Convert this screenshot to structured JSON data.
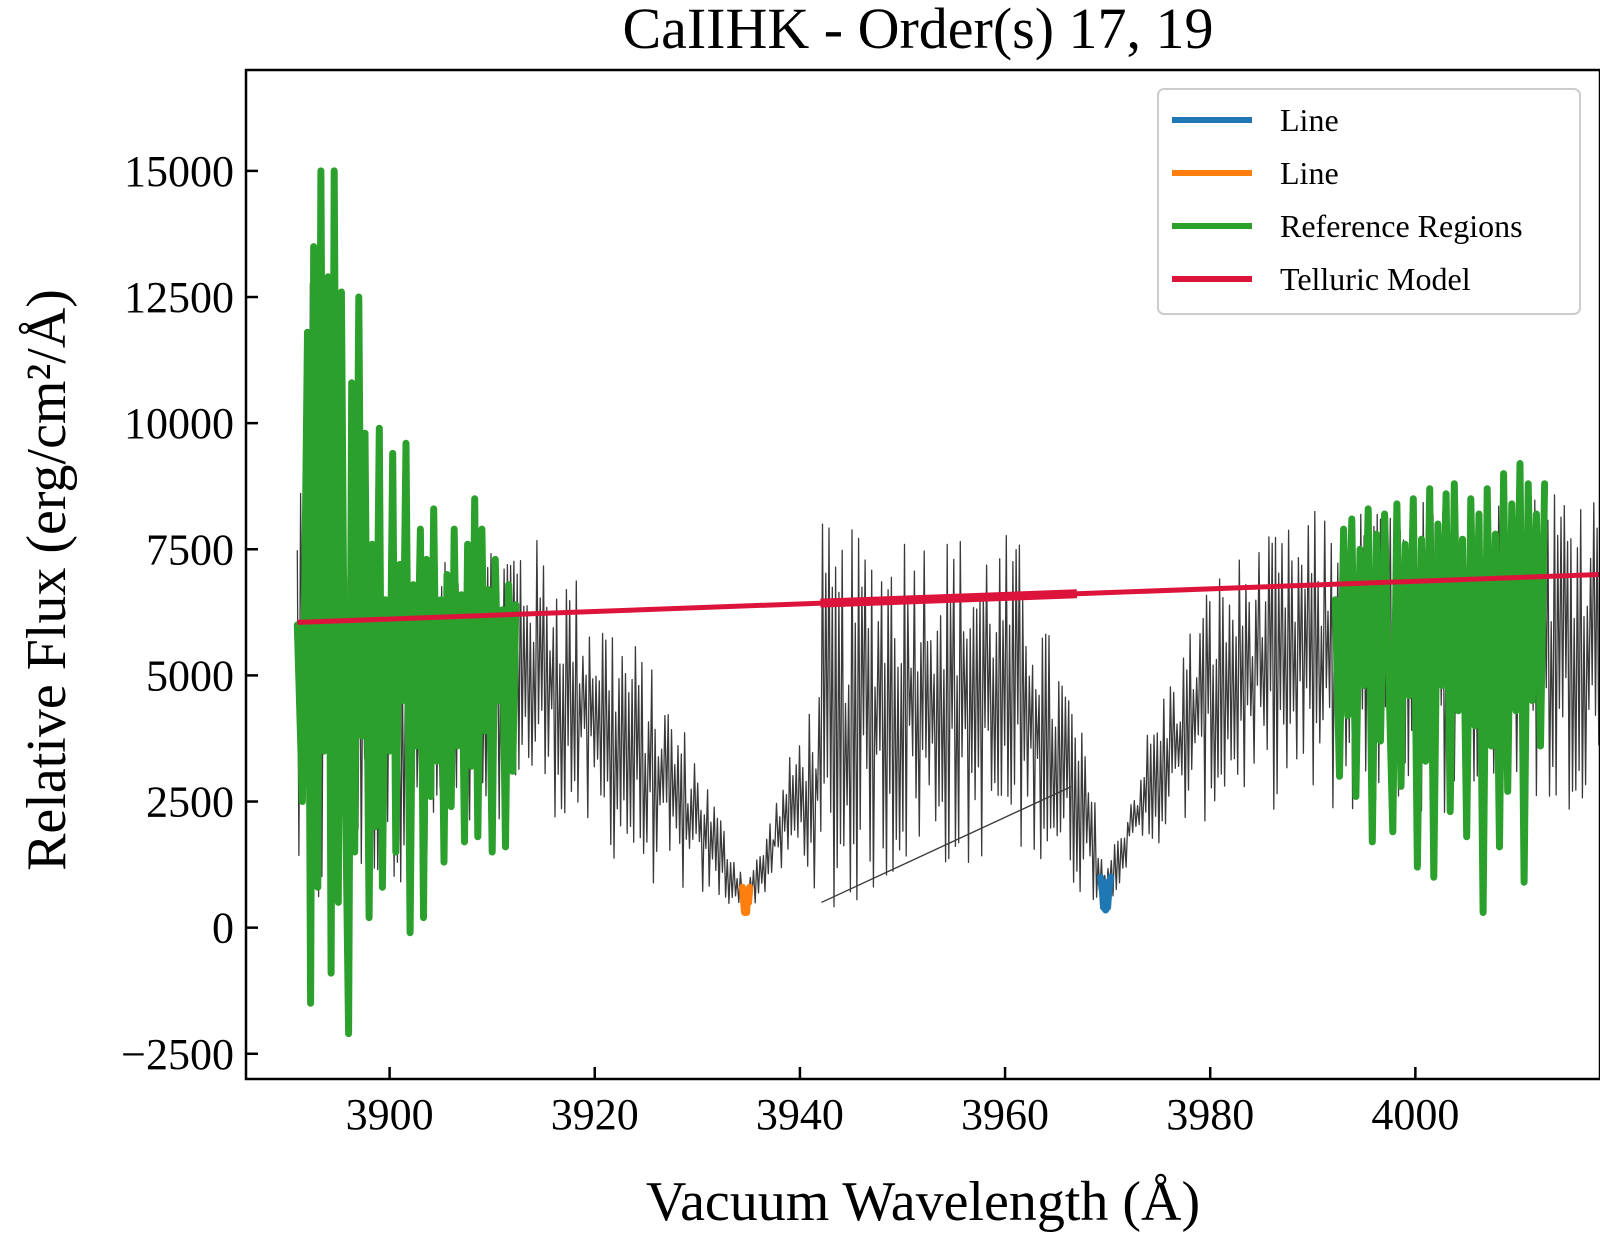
{
  "chart_data": {
    "type": "line",
    "title": "CaIIHK - Order(s) 17, 19",
    "xlabel": "Vacuum Wavelength (Å)",
    "ylabel": "Relative Flux (erg/cm²/Å)",
    "xlim": [
      3886,
      4018
    ],
    "ylim": [
      -3000,
      17000
    ],
    "xticks": [
      3900,
      3920,
      3940,
      3960,
      3980,
      4000
    ],
    "xtick_labels": [
      "3900",
      "3920",
      "3940",
      "3960",
      "3980",
      "4000"
    ],
    "yticks": [
      -2500,
      0,
      2500,
      5000,
      7500,
      10000,
      12500,
      15000
    ],
    "ytick_labels": [
      "−2500",
      "0",
      "2500",
      "5000",
      "7500",
      "10000",
      "12500",
      "15000"
    ],
    "grid": false,
    "legend_position": "top-right",
    "series": [
      {
        "name": "Line",
        "color": "#1f77b4",
        "x": [
          3969.3,
          3969.5,
          3969.6,
          3969.7,
          3969.8,
          3969.9,
          3970.0,
          3970.1,
          3970.3
        ],
        "y": [
          1000,
          700,
          400,
          900,
          350,
          800,
          400,
          700,
          1000
        ]
      },
      {
        "name": "Line",
        "color": "#ff7f0e",
        "x": [
          3934.4,
          3934.5,
          3934.6,
          3934.7,
          3934.8,
          3934.9,
          3935.0,
          3935.1
        ],
        "y": [
          800,
          550,
          300,
          700,
          300,
          650,
          500,
          800
        ]
      },
      {
        "name": "Reference Regions",
        "color": "#2ca02c",
        "regions": [
          {
            "x": [
              3891.0,
              3891.5,
              3892.0,
              3892.3,
              3892.6,
              3893.0,
              3893.3,
              3893.6,
              3894.0,
              3894.3,
              3894.6,
              3895.0,
              3895.3,
              3895.6,
              3896.0,
              3896.3,
              3896.6,
              3897.0,
              3897.3,
              3897.6,
              3898.0,
              3898.3,
              3898.6,
              3899.0,
              3899.3,
              3899.6,
              3900.0,
              3900.3,
              3900.6,
              3901.0,
              3901.3,
              3901.6,
              3902.0,
              3902.3,
              3902.6,
              3903.0,
              3903.3,
              3903.6,
              3904.0,
              3904.3,
              3904.6,
              3905.0,
              3905.3,
              3905.6,
              3906.0,
              3906.3,
              3906.6,
              3907.0,
              3907.3,
              3907.6,
              3908.0,
              3908.3,
              3908.6,
              3909.0,
              3909.3,
              3909.6,
              3910.0,
              3910.3,
              3910.6,
              3911.0,
              3911.3,
              3911.6,
              3912.0,
              3912.3
            ],
            "y": [
              6000,
              2500,
              11800,
              -1500,
              13500,
              800,
              15000,
              3500,
              12900,
              -900,
              15000,
              500,
              12600,
              4200,
              -2100,
              10800,
              1500,
              12500,
              3800,
              9800,
              200,
              7600,
              2000,
              9900,
              800,
              6500,
              3500,
              9400,
              1500,
              7200,
              4500,
              9600,
              -100,
              6800,
              3600,
              7900,
              200,
              7300,
              2600,
              8300,
              3300,
              6500,
              1300,
              7000,
              2400,
              7900,
              3600,
              6600,
              1700,
              7600,
              3200,
              8500,
              1800,
              7900,
              3900,
              6700,
              1500,
              7300,
              4500,
              6300,
              1600,
              6800,
              3100,
              6400
            ]
          },
          {
            "x": [
              3992.2,
              3992.6,
              3993.0,
              3993.4,
              3993.8,
              3994.2,
              3994.6,
              3995.0,
              3995.4,
              3995.8,
              3996.2,
              3996.6,
              3997.0,
              3997.4,
              3997.8,
              3998.2,
              3998.6,
              3999.0,
              3999.4,
              3999.8,
              4000.2,
              4000.6,
              4001.0,
              4001.4,
              4001.8,
              4002.2,
              4002.6,
              4003.0,
              4003.4,
              4003.8,
              4004.2,
              4004.6,
              4005.0,
              4005.4,
              4005.8,
              4006.2,
              4006.6,
              4007.0,
              4007.4,
              4007.8,
              4008.2,
              4008.6,
              4009.0,
              4009.4,
              4009.8,
              4010.2,
              4010.6,
              4011.0,
              4011.4,
              4011.8,
              4012.2,
              4012.6
            ],
            "y": [
              6500,
              3000,
              7900,
              4200,
              8100,
              2600,
              7500,
              4800,
              8300,
              1700,
              7800,
              3700,
              8200,
              5100,
              1900,
              8400,
              2800,
              7600,
              4600,
              8500,
              1200,
              7700,
              3300,
              8700,
              1000,
              8000,
              4800,
              8600,
              2300,
              8800,
              4300,
              7700,
              1800,
              8500,
              4000,
              8200,
              300,
              8700,
              3600,
              7800,
              1600,
              9000,
              2700,
              8400,
              4300,
              9200,
              900,
              8800,
              4500,
              8200,
              3600,
              8800
            ]
          }
        ]
      },
      {
        "name": "Telluric Model",
        "color": "#dc143c",
        "x": [
          3891,
          4018
        ],
        "y": [
          6050,
          7000
        ]
      },
      {
        "name": "",
        "color": "#3a3a3a",
        "role": "spectrum",
        "x": [
          3891,
          3892.5,
          3894,
          3896,
          3898,
          3900,
          3902,
          3904,
          3906,
          3908,
          3910,
          3912,
          3913,
          3914,
          3916,
          3918,
          3920,
          3922,
          3924,
          3926,
          3928,
          3930,
          3932,
          3933.5,
          3934.7,
          3936,
          3938,
          3940,
          3942,
          3942.1,
          3944,
          3946,
          3948,
          3950,
          3952,
          3954,
          3956,
          3958,
          3960,
          3962,
          3963,
          3964,
          3966,
          3968,
          3969.8,
          3972,
          3974,
          3976,
          3978,
          3980,
          3982,
          3984,
          3986,
          3988,
          3990,
          3992,
          4012.6,
          4014,
          4016,
          4018
        ],
        "upper": [
          8800,
          15900,
          8000,
          7500,
          7500,
          7200,
          7000,
          8000,
          7800,
          7800,
          8000,
          8000,
          8100,
          7800,
          7500,
          7100,
          6600,
          6200,
          5700,
          5000,
          4300,
          3500,
          2400,
          1600,
          1000,
          1500,
          2800,
          4000,
          5000,
          8100,
          7800,
          8000,
          8000,
          8100,
          8000,
          7900,
          7900,
          7900,
          7900,
          7600,
          6800,
          6000,
          5100,
          3500,
          1200,
          2500,
          4000,
          5000,
          6000,
          7000,
          7300,
          7600,
          7800,
          8000,
          8300,
          8300,
          8800,
          9200,
          9100,
          8700
        ],
        "lower": [
          300,
          -1200,
          500,
          200,
          800,
          1000,
          800,
          500,
          900,
          1500,
          1800,
          2800,
          2500,
          2400,
          2200,
          1800,
          1500,
          1300,
          1000,
          800,
          700,
          600,
          500,
          400,
          300,
          500,
          1000,
          1200,
          600,
          0,
          -100,
          500,
          700,
          1000,
          1500,
          1200,
          900,
          1400,
          1100,
          1300,
          1400,
          1300,
          800,
          600,
          350,
          1200,
          1500,
          1800,
          2000,
          2100,
          2400,
          2600,
          2300,
          2500,
          2400,
          2200,
          2300,
          2000,
          2500,
          3000
        ],
        "connector_line": {
          "x": [
            3942.1,
            3966.5
          ],
          "y": [
            500,
            2800
          ]
        }
      }
    ]
  }
}
